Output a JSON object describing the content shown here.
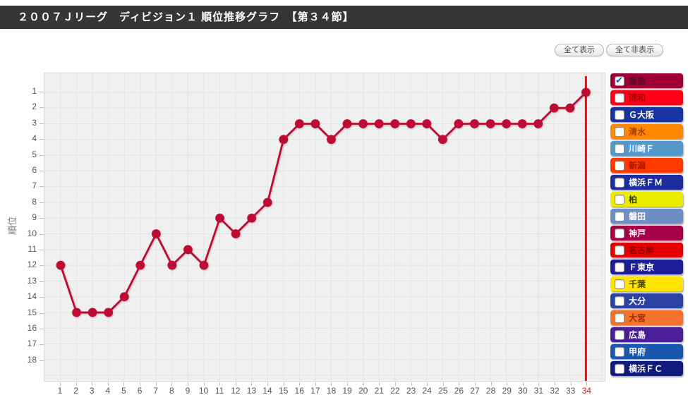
{
  "header": {
    "title": "２００７Ｊリーグ　ディビジョン１ 順位推移グラフ　【第３４節】"
  },
  "toolbar": {
    "show_all_label": "全て表示",
    "hide_all_label": "全て非表示"
  },
  "chart_data": {
    "type": "line",
    "ylabel": "順位",
    "x": [
      1,
      2,
      3,
      4,
      5,
      6,
      7,
      8,
      9,
      10,
      11,
      12,
      13,
      14,
      15,
      16,
      17,
      18,
      19,
      20,
      21,
      22,
      23,
      24,
      25,
      26,
      27,
      28,
      29,
      30,
      31,
      32,
      33,
      34
    ],
    "series": [
      {
        "name": "鹿島",
        "color": "#be0b31",
        "values": [
          12,
          15,
          15,
          15,
          14,
          12,
          10,
          12,
          11,
          12,
          9,
          10,
          9,
          8,
          4,
          3,
          3,
          4,
          3,
          3,
          3,
          3,
          3,
          3,
          4,
          3,
          3,
          3,
          3,
          3,
          3,
          2,
          2,
          1
        ]
      }
    ],
    "ylim": [
      1,
      18
    ],
    "y_inverted": true,
    "grid": true,
    "gridline_color": "#e2e2e2",
    "plot_bg_color": "#f0f0f0",
    "current_round": 34,
    "current_round_line_color": "#ff0000",
    "current_round_label_color": "#ff0000"
  },
  "legend": {
    "checked_team": "鹿島",
    "items": [
      {
        "id": "kashima",
        "label": "鹿島",
        "bg": "#a00038",
        "text_color": "#5e0a1e",
        "checked": true
      },
      {
        "id": "urawa",
        "label": "浦和",
        "bg": "#ff0018",
        "text_color": "#a50000",
        "checked": false
      },
      {
        "id": "g-osaka",
        "label": "Ｇ大阪",
        "bg": "#1733a0",
        "text_color": "#ffffff",
        "checked": false
      },
      {
        "id": "shimizu",
        "label": "清水",
        "bg": "#ff8800",
        "text_color": "#a33d00",
        "checked": false
      },
      {
        "id": "kawasaki-f",
        "label": "川崎Ｆ",
        "bg": "#5498cc",
        "text_color": "#ffffff",
        "checked": false
      },
      {
        "id": "niigata",
        "label": "新潟",
        "bg": "#ff3a00",
        "text_color": "#a31500",
        "checked": false
      },
      {
        "id": "yokohama-fm",
        "label": "横浜ＦＭ",
        "bg": "#1d2c9e",
        "text_color": "#ffffff",
        "checked": false
      },
      {
        "id": "kashiwa",
        "label": "柏",
        "bg": "#ecec00",
        "text_color": "#3a3a00",
        "checked": false
      },
      {
        "id": "iwata",
        "label": "磐田",
        "bg": "#6e8ec6",
        "text_color": "#ffffff",
        "checked": false
      },
      {
        "id": "kobe",
        "label": "神戸",
        "bg": "#a60046",
        "text_color": "#ffffff",
        "checked": false
      },
      {
        "id": "nagoya",
        "label": "名古屋",
        "bg": "#e60000",
        "text_color": "#8f0000",
        "checked": false
      },
      {
        "id": "f-tokyo",
        "label": "Ｆ東京",
        "bg": "#1d1d99",
        "text_color": "#ffffff",
        "checked": false
      },
      {
        "id": "chiba",
        "label": "千葉",
        "bg": "#ffe400",
        "text_color": "#4a4a00",
        "checked": false
      },
      {
        "id": "oita",
        "label": "大分",
        "bg": "#2c41a4",
        "text_color": "#ffffff",
        "checked": false
      },
      {
        "id": "omiya",
        "label": "大宮",
        "bg": "#f4722c",
        "text_color": "#9c2800",
        "checked": false
      },
      {
        "id": "hiroshima",
        "label": "広島",
        "bg": "#4a1d99",
        "text_color": "#ffffff",
        "checked": false
      },
      {
        "id": "kofu",
        "label": "甲府",
        "bg": "#1a57b0",
        "text_color": "#ffffff",
        "checked": false
      },
      {
        "id": "yokohama-fc",
        "label": "横浜ＦＣ",
        "bg": "#131a7e",
        "text_color": "#ffffff",
        "checked": false
      }
    ]
  }
}
